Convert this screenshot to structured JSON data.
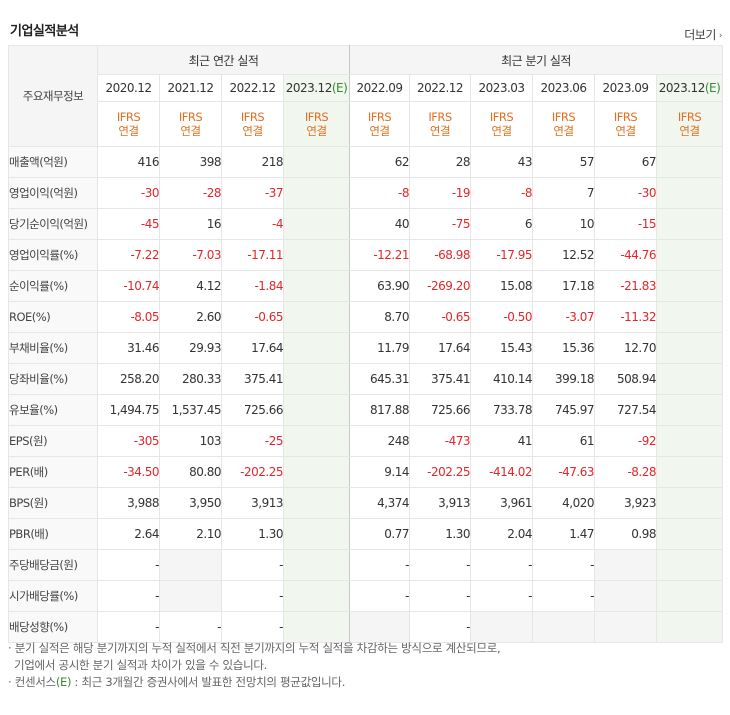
{
  "title": "기업실적분석",
  "more_label": "더보기",
  "header": {
    "row_label": "주요재무정보",
    "annual_group": "최근 연간 실적",
    "quarter_group": "최근 분기 실적",
    "annual_periods": [
      "2020.12",
      "2021.12",
      "2022.12",
      "2023.12"
    ],
    "quarter_periods": [
      "2022.09",
      "2022.12",
      "2023.03",
      "2023.06",
      "2023.09",
      "2023.12"
    ],
    "consensus_mark": "(E)",
    "ifrs_line1": "IFRS",
    "ifrs_line2": "연결"
  },
  "rows": [
    {
      "label": "매출액(억원)",
      "annual": [
        "416",
        "398",
        "218",
        ""
      ],
      "quarter": [
        "62",
        "28",
        "43",
        "57",
        "67",
        ""
      ]
    },
    {
      "label": "영업이익(억원)",
      "annual": [
        "-30",
        "-28",
        "-37",
        ""
      ],
      "quarter": [
        "-8",
        "-19",
        "-8",
        "7",
        "-30",
        ""
      ]
    },
    {
      "label": "당기순이익(억원)",
      "annual": [
        "-45",
        "16",
        "-4",
        ""
      ],
      "quarter": [
        "40",
        "-75",
        "6",
        "10",
        "-15",
        ""
      ]
    },
    {
      "label": "영업이익률(%)",
      "annual": [
        "-7.22",
        "-7.03",
        "-17.11",
        ""
      ],
      "quarter": [
        "-12.21",
        "-68.98",
        "-17.95",
        "12.52",
        "-44.76",
        ""
      ]
    },
    {
      "label": "순이익률(%)",
      "annual": [
        "-10.74",
        "4.12",
        "-1.84",
        ""
      ],
      "quarter": [
        "63.90",
        "-269.20",
        "15.08",
        "17.18",
        "-21.83",
        ""
      ]
    },
    {
      "label": "ROE(%)",
      "annual": [
        "-8.05",
        "2.60",
        "-0.65",
        ""
      ],
      "quarter": [
        "8.70",
        "-0.65",
        "-0.50",
        "-3.07",
        "-11.32",
        ""
      ]
    },
    {
      "label": "부채비율(%)",
      "annual": [
        "31.46",
        "29.93",
        "17.64",
        ""
      ],
      "quarter": [
        "11.79",
        "17.64",
        "15.43",
        "15.36",
        "12.70",
        ""
      ]
    },
    {
      "label": "당좌비율(%)",
      "annual": [
        "258.20",
        "280.33",
        "375.41",
        ""
      ],
      "quarter": [
        "645.31",
        "375.41",
        "410.14",
        "399.18",
        "508.94",
        ""
      ]
    },
    {
      "label": "유보율(%)",
      "annual": [
        "1,494.75",
        "1,537.45",
        "725.66",
        ""
      ],
      "quarter": [
        "817.88",
        "725.66",
        "733.78",
        "745.97",
        "727.54",
        ""
      ]
    },
    {
      "label": "EPS(원)",
      "annual": [
        "-305",
        "103",
        "-25",
        ""
      ],
      "quarter": [
        "248",
        "-473",
        "41",
        "61",
        "-92",
        ""
      ]
    },
    {
      "label": "PER(배)",
      "annual": [
        "-34.50",
        "80.80",
        "-202.25",
        ""
      ],
      "quarter": [
        "9.14",
        "-202.25",
        "-414.02",
        "-47.63",
        "-8.28",
        ""
      ]
    },
    {
      "label": "BPS(원)",
      "annual": [
        "3,988",
        "3,950",
        "3,913",
        ""
      ],
      "quarter": [
        "4,374",
        "3,913",
        "3,961",
        "4,020",
        "3,923",
        ""
      ]
    },
    {
      "label": "PBR(배)",
      "annual": [
        "2.64",
        "2.10",
        "1.30",
        ""
      ],
      "quarter": [
        "0.77",
        "1.30",
        "2.04",
        "1.47",
        "0.98",
        ""
      ]
    },
    {
      "label": "주당배당금(원)",
      "annual": [
        "-",
        "",
        "-",
        ""
      ],
      "quarter": [
        "-",
        "-",
        "-",
        "-",
        "",
        ""
      ]
    },
    {
      "label": "시가배당률(%)",
      "annual": [
        "-",
        "",
        "-",
        ""
      ],
      "quarter": [
        "-",
        "-",
        "-",
        "-",
        "",
        ""
      ]
    },
    {
      "label": "배당성향(%)",
      "annual": [
        "-",
        "-",
        "-",
        ""
      ],
      "quarter": [
        "",
        "-",
        "",
        "",
        "",
        ""
      ]
    }
  ],
  "notes": {
    "line1": "· 분기 실적은 해당 분기까지의 누적 실적에서 직전 분기까지의 누적 실적을 차감하는 방식으로 계산되므로,",
    "line2": "  기업에서 공시한 분기 실적과 차이가 있을 수 있습니다.",
    "line3_prefix": "· 컨센서스",
    "line3_mark": "(E)",
    "line3_suffix": " : 최근 3개월간 증권사에서 발표한 전망치의 평균값입니다."
  }
}
